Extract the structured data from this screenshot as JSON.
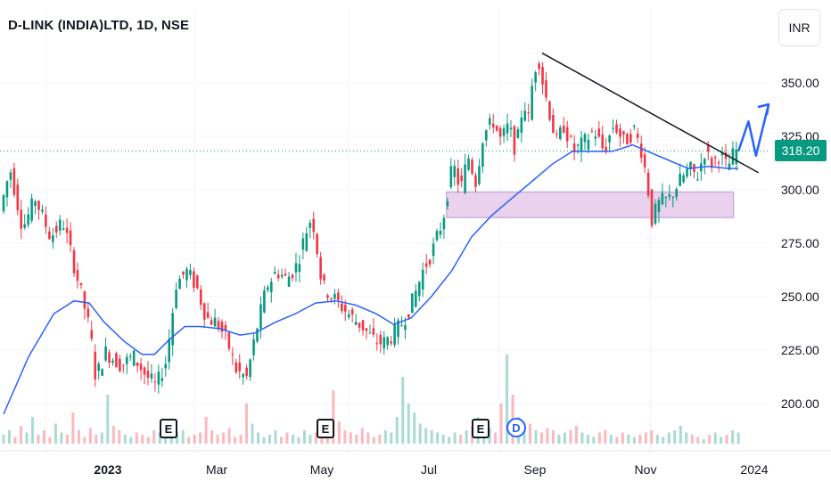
{
  "header": {
    "title": "D-LINK (INDIA)LTD, 1D, NSE",
    "currency": "INR"
  },
  "last_price": "318.20",
  "colors": {
    "up": "#089981",
    "down": "#f23645",
    "ma": "#2962ff",
    "arrow": "#2962ff",
    "trendline": "#131722",
    "support_zone": "#e1bee7",
    "price_line": "#089981"
  },
  "y_axis": [
    "350.00",
    "325.00",
    "300.00",
    "275.00",
    "250.00",
    "225.00",
    "200.00"
  ],
  "x_axis": [
    {
      "label": "2023",
      "major": true
    },
    {
      "label": "Mar",
      "major": false
    },
    {
      "label": "May",
      "major": false
    },
    {
      "label": "Jul",
      "major": false
    },
    {
      "label": "Sep",
      "major": false
    },
    {
      "label": "Nov",
      "major": false
    },
    {
      "label": "2024",
      "major": false
    }
  ],
  "events": [
    {
      "label": "E",
      "type": "earnings"
    },
    {
      "label": "E",
      "type": "earnings"
    },
    {
      "label": "E",
      "type": "earnings"
    },
    {
      "label": "D",
      "type": "dividend"
    }
  ],
  "chart_data": {
    "type": "line",
    "y_range": [
      182,
      368
    ],
    "price_path": [
      [
        0,
        290
      ],
      [
        4,
        310
      ],
      [
        9,
        282
      ],
      [
        14,
        296
      ],
      [
        20,
        278
      ],
      [
        25,
        285
      ],
      [
        30,
        262
      ],
      [
        33,
        248
      ],
      [
        36,
        232
      ],
      [
        38,
        212
      ],
      [
        42,
        224
      ],
      [
        48,
        218
      ],
      [
        53,
        222
      ],
      [
        58,
        213
      ],
      [
        62,
        208
      ],
      [
        66,
        220
      ],
      [
        70,
        256
      ],
      [
        74,
        262
      ],
      [
        78,
        255
      ],
      [
        82,
        240
      ],
      [
        86,
        238
      ],
      [
        90,
        230
      ],
      [
        94,
        215
      ],
      [
        98,
        212
      ],
      [
        102,
        235
      ],
      [
        106,
        255
      ],
      [
        110,
        262
      ],
      [
        114,
        258
      ],
      [
        118,
        265
      ],
      [
        122,
        282
      ],
      [
        124,
        288
      ],
      [
        126,
        272
      ],
      [
        128,
        255
      ],
      [
        132,
        250
      ],
      [
        136,
        245
      ],
      [
        140,
        240
      ],
      [
        144,
        236
      ],
      [
        148,
        230
      ],
      [
        152,
        228
      ],
      [
        156,
        232
      ],
      [
        160,
        238
      ],
      [
        164,
        248
      ],
      [
        168,
        262
      ],
      [
        172,
        272
      ],
      [
        176,
        286
      ],
      [
        178,
        300
      ],
      [
        180,
        312
      ],
      [
        183,
        300
      ],
      [
        186,
        316
      ],
      [
        189,
        304
      ],
      [
        192,
        326
      ],
      [
        196,
        332
      ],
      [
        199,
        323
      ],
      [
        202,
        330
      ],
      [
        205,
        318
      ],
      [
        208,
        342
      ],
      [
        210,
        333
      ],
      [
        212,
        355
      ],
      [
        214,
        362
      ],
      [
        216,
        348
      ],
      [
        218,
        338
      ],
      [
        221,
        322
      ],
      [
        224,
        330
      ],
      [
        228,
        318
      ],
      [
        232,
        322
      ],
      [
        236,
        328
      ],
      [
        240,
        318
      ],
      [
        244,
        331
      ],
      [
        248,
        322
      ],
      [
        252,
        328
      ],
      [
        255,
        318
      ],
      [
        257,
        305
      ],
      [
        259,
        286
      ],
      [
        262,
        294
      ],
      [
        266,
        296
      ],
      [
        270,
        304
      ],
      [
        274,
        310
      ],
      [
        277,
        306
      ],
      [
        280,
        318
      ],
      [
        283,
        312
      ],
      [
        286,
        317
      ],
      [
        289,
        310
      ],
      [
        292,
        318.2
      ]
    ],
    "moving_average": [
      [
        0,
        195
      ],
      [
        10,
        222
      ],
      [
        20,
        242
      ],
      [
        28,
        248
      ],
      [
        34,
        247
      ],
      [
        40,
        238
      ],
      [
        48,
        229
      ],
      [
        55,
        223
      ],
      [
        60,
        223
      ],
      [
        66,
        230
      ],
      [
        72,
        236
      ],
      [
        78,
        236
      ],
      [
        86,
        235
      ],
      [
        94,
        232
      ],
      [
        100,
        233
      ],
      [
        108,
        238
      ],
      [
        116,
        242
      ],
      [
        124,
        247
      ],
      [
        132,
        248
      ],
      [
        140,
        246
      ],
      [
        148,
        242
      ],
      [
        155,
        237
      ],
      [
        162,
        240
      ],
      [
        170,
        250
      ],
      [
        178,
        262
      ],
      [
        186,
        278
      ],
      [
        194,
        288
      ],
      [
        202,
        296
      ],
      [
        210,
        304
      ],
      [
        218,
        312
      ],
      [
        226,
        318
      ],
      [
        234,
        318
      ],
      [
        242,
        318
      ],
      [
        250,
        321
      ],
      [
        256,
        318
      ],
      [
        264,
        314
      ],
      [
        272,
        310
      ],
      [
        280,
        311
      ],
      [
        288,
        310
      ],
      [
        292,
        310
      ]
    ],
    "trendline": [
      [
        214,
        364
      ],
      [
        300,
        308
      ]
    ],
    "support_zone": [
      [
        176,
        299
      ],
      [
        283,
        287
      ]
    ],
    "projection_arrow": [
      [
        292,
        318
      ],
      [
        296,
        332
      ],
      [
        299,
        316
      ],
      [
        304,
        340
      ]
    ],
    "volume": [
      4,
      6,
      3,
      8,
      5,
      12,
      4,
      6,
      3,
      9,
      5,
      4,
      14,
      6,
      3,
      7,
      4,
      5,
      22,
      8,
      6,
      4,
      3,
      5,
      4,
      3,
      6,
      5,
      4,
      8,
      5,
      6,
      3,
      4,
      5,
      12,
      6,
      4,
      5,
      7,
      3,
      4,
      18,
      9,
      5,
      3,
      4,
      6,
      3,
      5,
      4,
      3,
      6,
      4,
      5,
      3,
      4,
      24,
      10,
      6,
      5,
      4,
      7,
      5,
      3,
      4,
      6,
      5,
      12,
      30,
      18,
      14,
      9,
      7,
      6,
      5,
      4,
      3,
      5,
      4,
      6,
      8,
      12,
      10,
      7,
      5,
      18,
      40,
      22,
      12,
      8,
      9,
      6,
      5,
      7,
      6,
      4,
      5,
      6,
      8,
      5,
      4,
      3,
      5,
      6,
      4,
      3,
      5,
      4,
      3,
      4,
      5,
      6,
      4,
      3,
      5,
      6,
      8,
      5,
      4,
      3,
      2,
      4,
      5,
      3,
      4,
      6,
      5
    ]
  }
}
